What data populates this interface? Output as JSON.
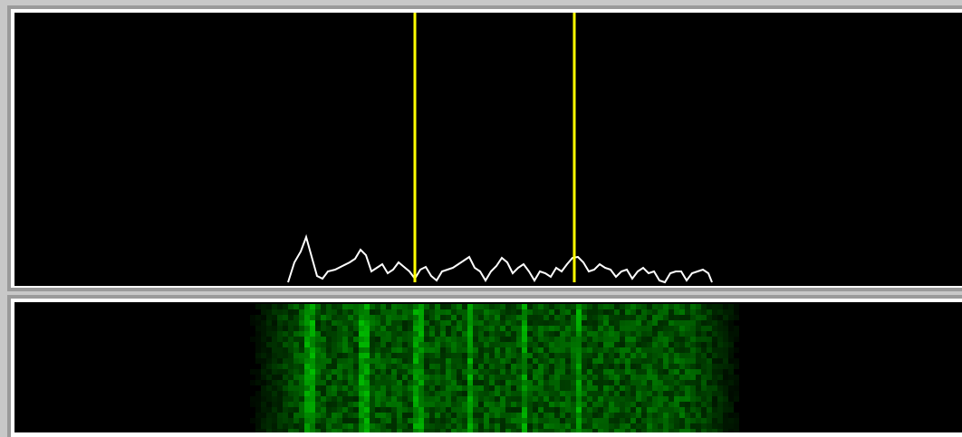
{
  "spectrum": {
    "trace_color": "#ffffff",
    "marker_color": "#ffff00"
  },
  "waterfall": {
    "color": "#00c800"
  }
}
